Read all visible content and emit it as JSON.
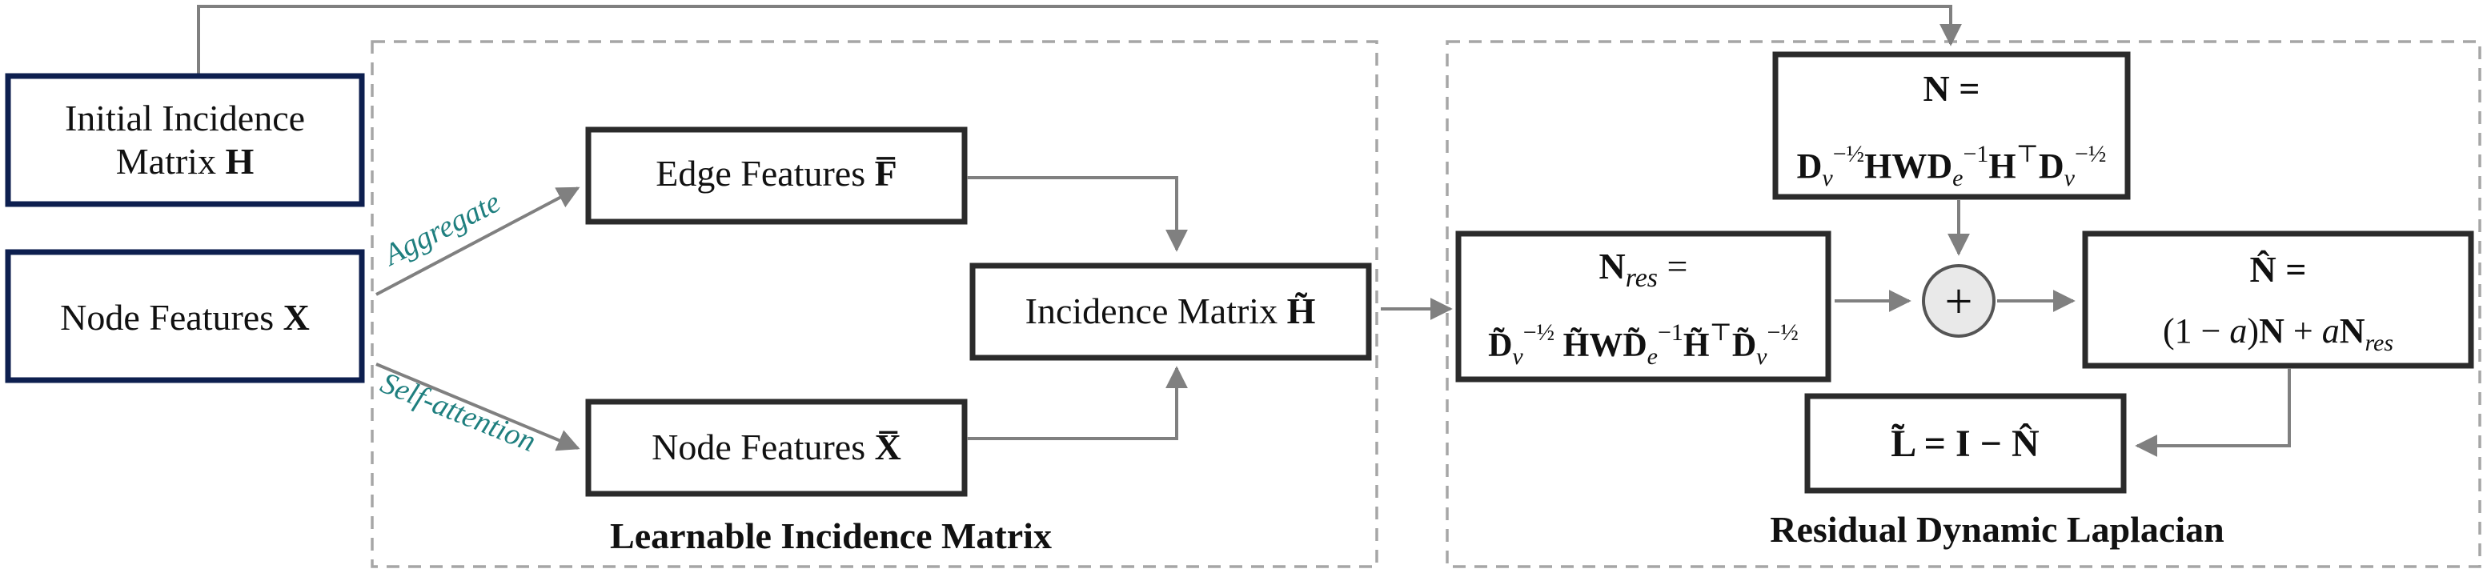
{
  "left_inputs": {
    "initial_incidence": {
      "line1": "Initial Incidence",
      "line2": "Matrix ",
      "symbol": "H"
    },
    "node_features": {
      "text": "Node Features ",
      "symbol": "X"
    }
  },
  "arrow_labels": {
    "aggregate": "Aggregate",
    "self_attention": "Self-attention"
  },
  "learnable_panel": {
    "title": "Learnable Incidence Matrix",
    "edge_features": {
      "text": "Edge Features ",
      "symbol": "F̅"
    },
    "node_features": {
      "text": "Node Features ",
      "symbol": "X̅"
    },
    "incidence": {
      "text": "Incidence Matrix ",
      "symbol": "H̃"
    }
  },
  "residual_panel": {
    "title": "Residual Dynamic Laplacian",
    "n_box": {
      "head": "N =",
      "formula": [
        {
          "t": "D",
          "b": true
        },
        {
          "sub": "v"
        },
        {
          "sup": "−½"
        },
        {
          "t": "HWD",
          "b": true
        },
        {
          "sub": "e"
        },
        {
          "sup": "−1"
        },
        {
          "t": "H",
          "b": true
        },
        {
          "sup": "⊤"
        },
        {
          "t": "D",
          "b": true
        },
        {
          "sub": "v"
        },
        {
          "sup": "−½"
        }
      ]
    },
    "nres_box": {
      "head_symbol": "N",
      "head_sub": "res",
      "head_eq": " =",
      "formula": [
        {
          "t": "D̃",
          "b": true
        },
        {
          "sub": "v"
        },
        {
          "sup": "−½"
        },
        {
          "t": " H̃WD̃",
          "b": true
        },
        {
          "sub": "e"
        },
        {
          "sup": "−1"
        },
        {
          "t": "H̃",
          "b": true
        },
        {
          "sup": "⊤"
        },
        {
          "t": "D̃",
          "b": true
        },
        {
          "sub": "v"
        },
        {
          "sup": "−½"
        }
      ]
    },
    "plus": "+",
    "nhat_box": {
      "head": "N̂ =",
      "line2": [
        {
          "t": "(1 − "
        },
        {
          "t": "a",
          "i": true
        },
        {
          "t": ")"
        },
        {
          "t": "N",
          "b": true
        },
        {
          "t": " + "
        },
        {
          "t": "a",
          "i": true
        },
        {
          "t": "N",
          "b": true
        },
        {
          "sub": "res"
        }
      ]
    },
    "laplacian_box": {
      "formula": "L̃ = I − N̂"
    }
  }
}
